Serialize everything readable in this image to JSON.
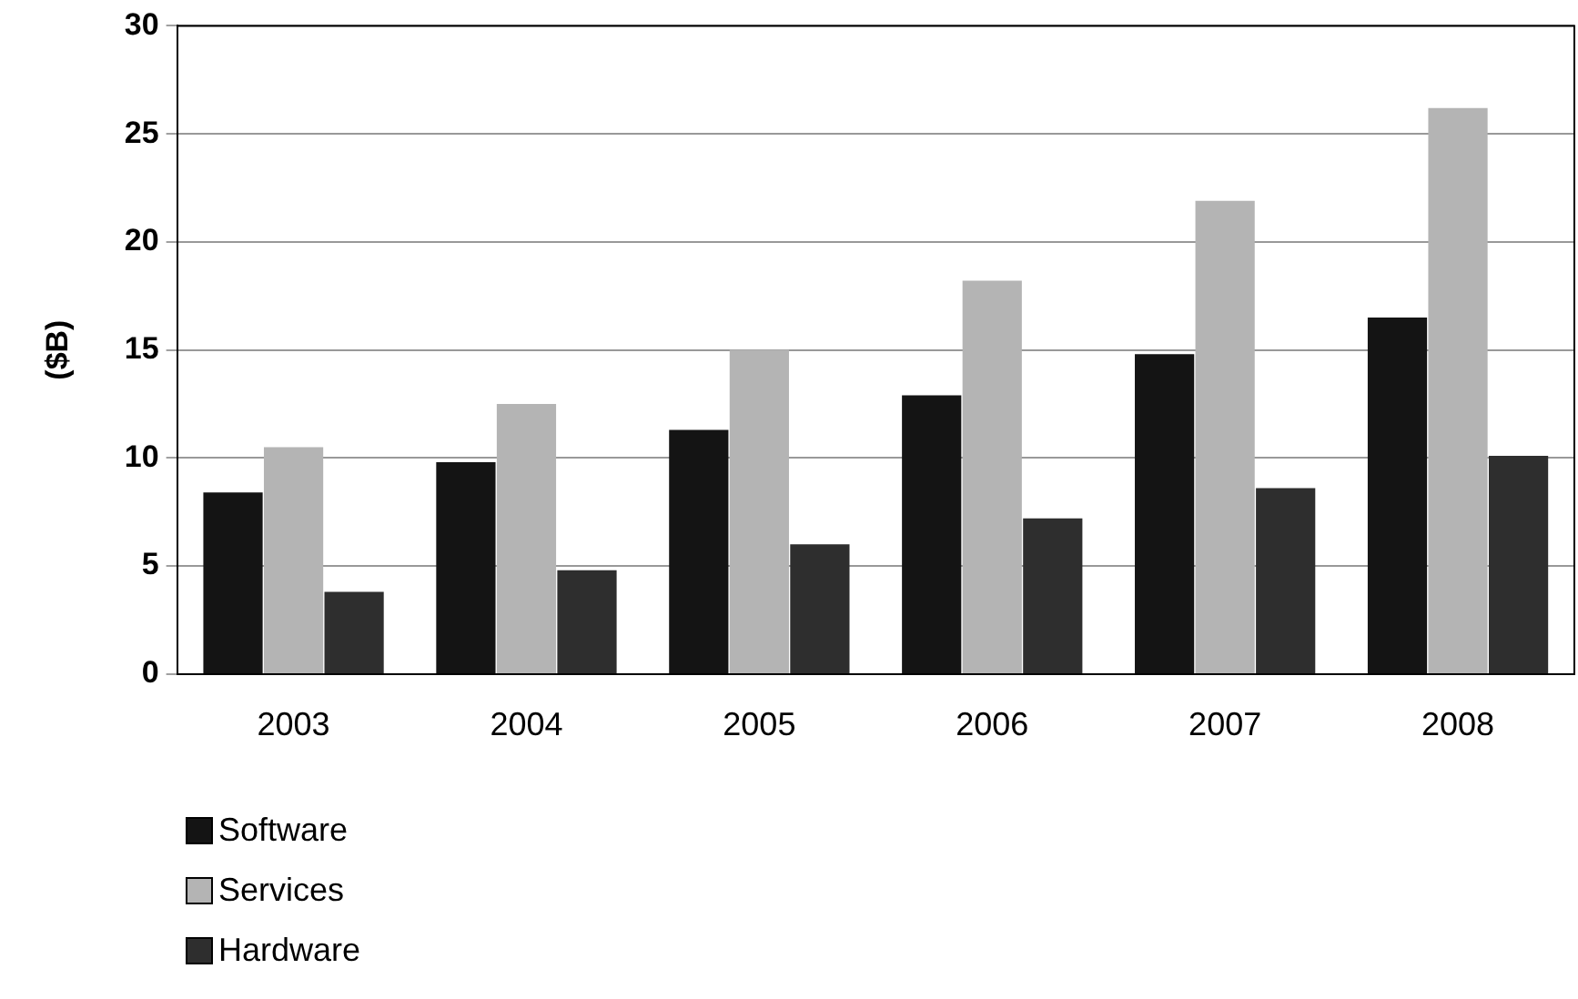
{
  "chart_data": {
    "type": "bar",
    "ylabel": "($B)",
    "categories": [
      "2003",
      "2004",
      "2005",
      "2006",
      "2007",
      "2008"
    ],
    "series": [
      {
        "name": "Software",
        "color": "#141414",
        "values": [
          8.4,
          9.8,
          11.3,
          12.9,
          14.8,
          16.5
        ]
      },
      {
        "name": "Services",
        "color": "#b4b4b4",
        "values": [
          10.5,
          12.5,
          15.0,
          18.2,
          21.9,
          26.2
        ]
      },
      {
        "name": "Hardware",
        "color": "#2e2e2e",
        "values": [
          3.8,
          4.8,
          6.0,
          7.2,
          8.6,
          10.1
        ]
      }
    ],
    "ylim": [
      0,
      30
    ],
    "yticks": [
      0,
      5,
      10,
      15,
      20,
      25,
      30
    ],
    "grid": "y",
    "legend": "bottom left"
  }
}
